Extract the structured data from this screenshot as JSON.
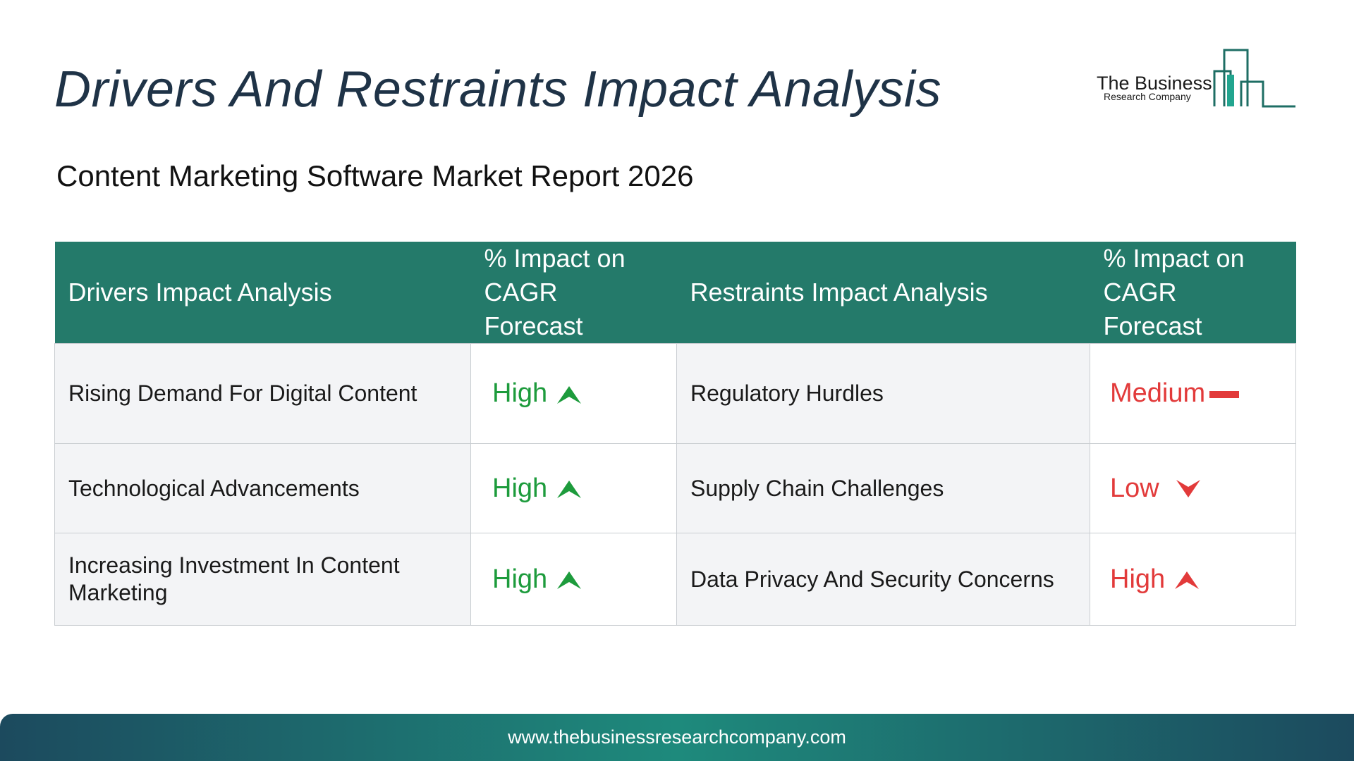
{
  "header": {
    "title": "Drivers And Restraints Impact Analysis",
    "subtitle": "Content Marketing Software Market Report 2026"
  },
  "logo": {
    "name": "The Business",
    "tagline": "Research Company"
  },
  "table": {
    "columns": [
      "Drivers Impact Analysis",
      "% Impact on CAGR Forecast",
      "Restraints Impact Analysis",
      "% Impact on CAGR Forecast"
    ],
    "rows": [
      [
        "Rising Demand For Digital Content",
        "High",
        "Regulatory Hurdles",
        "Medium"
      ],
      [
        "Technological Advancements",
        "High",
        "Supply Chain Challenges",
        "Low"
      ],
      [
        "Increasing Investment In Content Marketing",
        "High",
        "Data Privacy And Security Concerns",
        "High"
      ]
    ]
  },
  "footer": {
    "url": "www.thebusinessresearchcompany.com"
  }
}
